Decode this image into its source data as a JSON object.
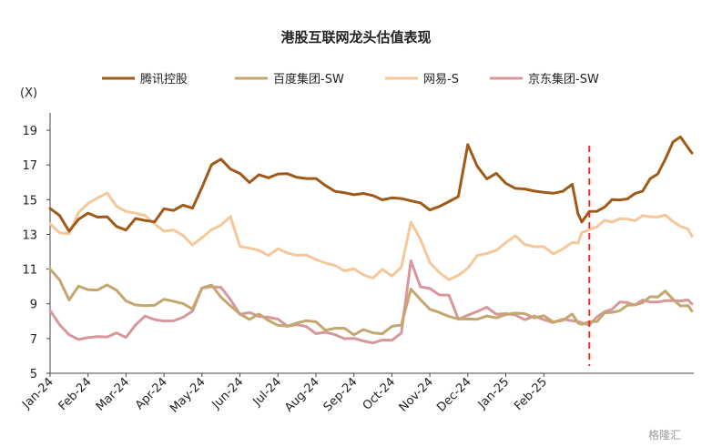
{
  "chart_data": {
    "type": "line",
    "title": "港股互联网龙头估值表现",
    "ylabel": "(X)",
    "xlabel": "",
    "ylim": [
      5,
      20
    ],
    "yticks": [
      5,
      7,
      9,
      11,
      13,
      15,
      17,
      19
    ],
    "xticks": [
      "Jan-24",
      "Feb-24",
      "Mar-24",
      "Apr-24",
      "May-24",
      "Jun-24",
      "Jul-24",
      "Aug-24",
      "Sep-24",
      "Oct-24",
      "Nov-24",
      "Dec-24",
      "Jan-25",
      "Feb-25"
    ],
    "legend_position": "top",
    "x_months": [
      0,
      0.25,
      0.5,
      0.75,
      1,
      1.25,
      1.5,
      1.75,
      2,
      2.25,
      2.5,
      2.75,
      3,
      3.25,
      3.5,
      3.75,
      4,
      4.25,
      4.5,
      4.75,
      5,
      5.25,
      5.5,
      5.75,
      6,
      6.25,
      6.5,
      6.75,
      7,
      7.25,
      7.5,
      7.75,
      8,
      8.25,
      8.5,
      8.75,
      9,
      9.25,
      9.5,
      9.75,
      10,
      10.25,
      10.5,
      10.75,
      11,
      11.25,
      11.5,
      11.75,
      12,
      12.25,
      12.5,
      12.75,
      13,
      13.25,
      13.5,
      13.75
    ],
    "series": [
      {
        "name": "腾讯控股",
        "color": "#a05a18",
        "width": 3,
        "values": [
          14.5,
          14.0,
          13.3,
          13.8,
          14.2,
          14.1,
          13.9,
          13.5,
          13.3,
          13.8,
          13.9,
          13.7,
          14.4,
          14.5,
          14.6,
          14.5,
          15.8,
          16.9,
          17.4,
          16.8,
          16.4,
          16.1,
          16.4,
          16.2,
          16.6,
          16.4,
          16.3,
          16.3,
          16.1,
          15.9,
          15.5,
          15.3,
          15.4,
          15.3,
          15.2,
          15.1,
          15.0,
          15.1,
          15.0,
          14.7,
          14.5,
          14.6,
          14.8,
          15.3,
          18.1,
          16.9,
          16.3,
          16.4,
          16.0,
          15.7,
          15.5,
          15.6,
          15.4,
          15.3,
          15.6,
          15.8
        ]
      },
      {
        "name": "百度集团-SW",
        "color": "#c4a66f",
        "width": 3,
        "values": [
          10.9,
          10.4,
          9.3,
          9.9,
          9.9,
          9.8,
          10.0,
          9.9,
          9.1,
          8.9,
          9.0,
          8.8,
          9.3,
          9.2,
          8.9,
          8.8,
          9.9,
          10.0,
          9.5,
          8.8,
          8.4,
          8.2,
          8.3,
          8.1,
          7.8,
          7.6,
          8.0,
          8.0,
          7.9,
          7.6,
          7.5,
          7.6,
          7.3,
          7.4,
          7.4,
          7.3,
          7.6,
          7.9,
          9.8,
          9.2,
          8.8,
          8.4,
          8.3,
          8.2,
          8.0,
          8.2,
          8.3,
          8.1,
          8.5,
          8.4,
          8.4,
          8.3,
          8.2,
          8.0,
          8.1,
          8.3
        ]
      },
      {
        "name": "网易-S",
        "color": "#f5c79a",
        "width": 3,
        "values": [
          13.5,
          13.2,
          13.0,
          14.2,
          14.9,
          15.0,
          15.4,
          14.7,
          14.2,
          14.3,
          14.1,
          13.5,
          13.3,
          13.2,
          12.9,
          12.5,
          12.7,
          13.3,
          13.6,
          13.9,
          12.4,
          12.2,
          12.0,
          11.9,
          12.1,
          11.9,
          11.9,
          11.7,
          11.6,
          11.4,
          11.1,
          11.0,
          11.0,
          10.6,
          10.6,
          10.9,
          10.6,
          11.2,
          13.6,
          12.8,
          11.4,
          10.7,
          10.5,
          10.6,
          11.0,
          11.9,
          11.8,
          12.1,
          12.6,
          12.8,
          12.5,
          12.3,
          12.2,
          12.0,
          12.1,
          12.5
        ]
      },
      {
        "name": "京东集团-SW",
        "color": "#d7979b",
        "width": 3,
        "values": [
          8.6,
          7.9,
          7.1,
          7.0,
          7.1,
          7.0,
          7.2,
          7.3,
          7.0,
          7.9,
          8.2,
          8.1,
          8.1,
          7.9,
          8.3,
          8.6,
          9.8,
          10.1,
          9.9,
          9.2,
          8.5,
          8.4,
          8.3,
          8.3,
          8.0,
          7.8,
          7.8,
          7.6,
          7.4,
          7.3,
          7.2,
          7.1,
          6.9,
          6.9,
          6.8,
          6.8,
          7.0,
          7.3,
          11.4,
          10.1,
          9.8,
          9.5,
          9.6,
          8.0,
          8.4,
          8.6,
          8.7,
          8.5,
          8.4,
          8.3,
          8.2,
          8.2,
          8.1,
          8.0,
          8.0,
          8.1
        ]
      }
    ],
    "series_tail": {
      "x_months": [
        13.9,
        14.0,
        14.2,
        14.4,
        14.6,
        14.8,
        15.0,
        15.2,
        15.4,
        15.6,
        15.8,
        16.0,
        16.2,
        16.4,
        16.6,
        16.8,
        16.9
      ],
      "values": [
        [
          14.2,
          13.8,
          14.2,
          14.4,
          14.6,
          14.9,
          15.1,
          15.0,
          15.3,
          15.6,
          16.1,
          16.5,
          17.4,
          18.2,
          18.7,
          18.0,
          17.6
        ],
        [
          8.0,
          7.8,
          7.9,
          8.1,
          8.4,
          8.5,
          8.7,
          8.8,
          9.0,
          9.1,
          9.3,
          9.5,
          9.7,
          9.2,
          9.0,
          8.8,
          8.6
        ],
        [
          12.6,
          13.0,
          13.3,
          13.5,
          13.7,
          13.8,
          13.9,
          13.8,
          13.9,
          14.0,
          14.0,
          14.1,
          14.0,
          13.8,
          13.5,
          13.2,
          13.0
        ],
        [
          8.0,
          7.8,
          7.9,
          8.2,
          8.5,
          8.8,
          9.0,
          9.1,
          9.0,
          9.1,
          9.2,
          9.1,
          9.1,
          9.3,
          9.1,
          9.2,
          9.1
        ]
      ]
    },
    "annotation": {
      "type": "vertical-dashed-line",
      "x_month": 14.2,
      "color": "#e03030"
    },
    "watermark": "格隆汇"
  }
}
